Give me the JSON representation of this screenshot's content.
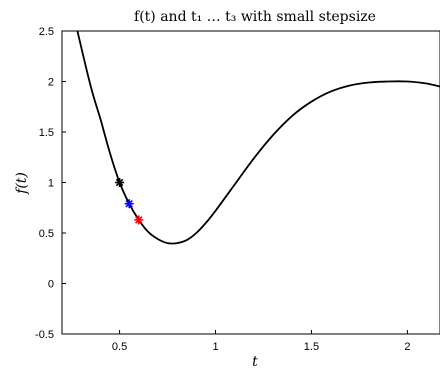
{
  "chart_data": {
    "type": "line",
    "title": "f(t) and t₁ … t₃ with small stepsize",
    "xlabel": "t",
    "ylabel": "f(t)",
    "xlim": [
      0.2,
      2.17
    ],
    "ylim": [
      -0.5,
      2.5
    ],
    "grid": false,
    "x_ticks": [
      "0.5",
      "1",
      "1.5",
      "2"
    ],
    "x_tick_values": [
      0.5,
      1,
      1.5,
      2
    ],
    "y_ticks": [
      "-0.5",
      "0",
      "0.5",
      "1",
      "1.5",
      "2",
      "2.5"
    ],
    "y_tick_values": [
      -0.5,
      0,
      0.5,
      1,
      1.5,
      2,
      2.5
    ],
    "series": [
      {
        "values": [
          [
            0.28,
            2.5
          ],
          [
            0.35,
            1.95
          ],
          [
            0.4,
            1.63
          ],
          [
            0.45,
            1.29
          ],
          [
            0.5,
            1.0
          ],
          [
            0.55,
            0.79
          ],
          [
            0.6,
            0.63
          ],
          [
            0.65,
            0.51
          ],
          [
            0.7,
            0.44
          ],
          [
            0.75,
            0.4
          ],
          [
            0.8,
            0.4
          ],
          [
            0.85,
            0.43
          ],
          [
            0.9,
            0.5
          ],
          [
            0.95,
            0.6
          ],
          [
            1.0,
            0.72
          ],
          [
            1.1,
            0.98
          ],
          [
            1.2,
            1.24
          ],
          [
            1.3,
            1.47
          ],
          [
            1.4,
            1.66
          ],
          [
            1.5,
            1.8
          ],
          [
            1.6,
            1.9
          ],
          [
            1.7,
            1.96
          ],
          [
            1.8,
            1.99
          ],
          [
            1.9,
            2.0
          ],
          [
            2.0,
            2.0
          ],
          [
            2.1,
            1.98
          ],
          [
            2.17,
            1.95
          ]
        ],
        "color": "#000000"
      }
    ],
    "points": [
      {
        "x": 0.5,
        "y": 1.0,
        "color": "#000000"
      },
      {
        "x": 0.55,
        "y": 0.79,
        "color": "#0000ff"
      },
      {
        "x": 0.6,
        "y": 0.63,
        "color": "#ff0000"
      }
    ]
  }
}
